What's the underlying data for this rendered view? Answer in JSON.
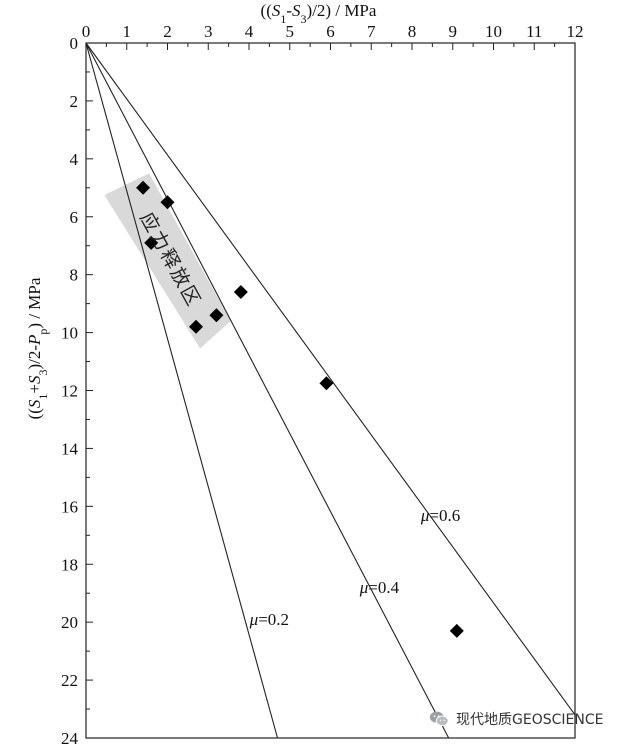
{
  "chart_data": {
    "type": "scatter",
    "x_axis": {
      "label_parts": [
        "((",
        "S",
        "1",
        "-",
        "S",
        "3",
        ")/2) / MPa"
      ],
      "min": 0,
      "max": 12,
      "ticks": [
        0,
        1,
        2,
        3,
        4,
        5,
        6,
        7,
        8,
        9,
        10,
        11,
        12
      ],
      "position": "top"
    },
    "y_axis": {
      "label_parts": [
        "((",
        "S",
        "1",
        "+",
        "S",
        "3",
        ")/2-",
        "P",
        "p",
        ") / MPa"
      ],
      "min": 0,
      "max": 24,
      "ticks": [
        0,
        2,
        4,
        6,
        8,
        10,
        12,
        14,
        16,
        18,
        20,
        22,
        24
      ],
      "inverted": true
    },
    "grid": false,
    "series": [
      {
        "marker": "diamond",
        "color": "#000000",
        "points": [
          {
            "x": 1.4,
            "y": 5.0
          },
          {
            "x": 2.0,
            "y": 5.5
          },
          {
            "x": 1.6,
            "y": 6.9
          },
          {
            "x": 3.8,
            "y": 8.6
          },
          {
            "x": 3.2,
            "y": 9.4
          },
          {
            "x": 2.7,
            "y": 9.8
          },
          {
            "x": 5.9,
            "y": 11.75
          },
          {
            "x": 9.1,
            "y": 20.3
          }
        ]
      }
    ],
    "friction_lines": [
      {
        "label": "μ=0.2",
        "mu": 0.2,
        "end": {
          "x": 4.7,
          "y": 24
        }
      },
      {
        "label": "μ=0.4",
        "mu": 0.4,
        "end": {
          "x": 8.9,
          "y": 24
        }
      },
      {
        "label": "μ=0.6",
        "mu": 0.6,
        "end": {
          "x": 12.0,
          "y": 23.2
        }
      }
    ],
    "annotations": [
      {
        "text": "应力释放区",
        "type": "shaded-region",
        "color": "#d9d9d9",
        "corners": [
          {
            "x": 1.55,
            "y": 4.5
          },
          {
            "x": 3.55,
            "y": 9.6
          },
          {
            "x": 2.8,
            "y": 10.55
          },
          {
            "x": 0.45,
            "y": 5.25
          }
        ]
      }
    ]
  },
  "watermark": {
    "text": "现代地质GEOSCIENCE",
    "icon": "wechat-icon",
    "icon_color": "#9aa0a6"
  }
}
